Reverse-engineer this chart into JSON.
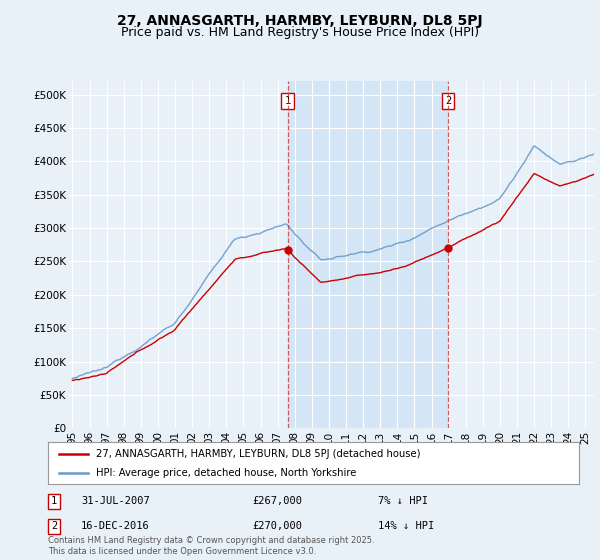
{
  "title": "27, ANNASGARTH, HARMBY, LEYBURN, DL8 5PJ",
  "subtitle": "Price paid vs. HM Land Registry's House Price Index (HPI)",
  "ylabel_ticks": [
    "£0",
    "£50K",
    "£100K",
    "£150K",
    "£200K",
    "£250K",
    "£300K",
    "£350K",
    "£400K",
    "£450K",
    "£500K"
  ],
  "ytick_values": [
    0,
    50000,
    100000,
    150000,
    200000,
    250000,
    300000,
    350000,
    400000,
    450000,
    500000
  ],
  "ylim": [
    0,
    520000
  ],
  "xlim_start": 1994.8,
  "xlim_end": 2025.5,
  "background_color": "#e8f0f8",
  "plot_bg_color": "#e8f0f8",
  "shade_color": "#d0e4f5",
  "line1_color": "#cc0000",
  "line2_color": "#6699cc",
  "line1_label": "27, ANNASGARTH, HARMBY, LEYBURN, DL8 5PJ (detached house)",
  "line2_label": "HPI: Average price, detached house, North Yorkshire",
  "marker1_date": 2007.58,
  "marker1_label": "1",
  "marker1_value": 267000,
  "marker2_date": 2016.96,
  "marker2_label": "2",
  "marker2_value": 270000,
  "footer": "Contains HM Land Registry data © Crown copyright and database right 2025.\nThis data is licensed under the Open Government Licence v3.0.",
  "title_fontsize": 10,
  "subtitle_fontsize": 9,
  "tick_fontsize": 7.5,
  "xtick_labels": [
    "95",
    "96",
    "97",
    "98",
    "99",
    "00",
    "01",
    "02",
    "03",
    "04",
    "05",
    "06",
    "07",
    "08",
    "09",
    "10",
    "11",
    "12",
    "13",
    "14",
    "15",
    "16",
    "17",
    "18",
    "19",
    "20",
    "21",
    "22",
    "23",
    "24",
    "25"
  ],
  "xtick_positions": [
    1995,
    1996,
    1997,
    1998,
    1999,
    2000,
    2001,
    2002,
    2003,
    2004,
    2005,
    2006,
    2007,
    2008,
    2009,
    2010,
    2011,
    2012,
    2013,
    2014,
    2015,
    2016,
    2017,
    2018,
    2019,
    2020,
    2021,
    2022,
    2023,
    2024,
    2025
  ]
}
